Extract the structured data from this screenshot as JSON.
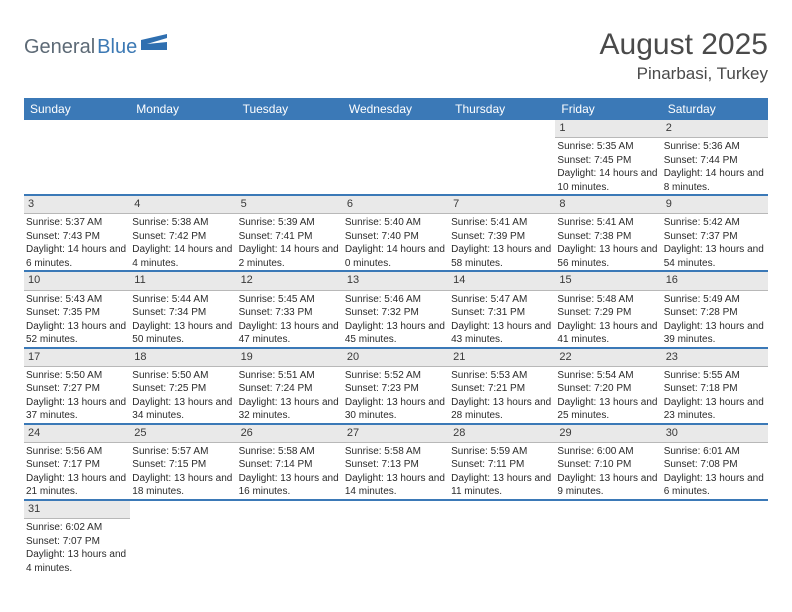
{
  "logo": {
    "part1": "General",
    "part2": "Blue",
    "shape_color": "#2f6fb0"
  },
  "header": {
    "title": "August 2025",
    "location": "Pinarbasi, Turkey"
  },
  "colors": {
    "header_bg": "#3b79b7",
    "header_text": "#ffffff",
    "daynum_bg": "#e9e9e9",
    "daynum_border": "#b8b8b8",
    "divider": "#3b79b7",
    "body_text": "#2b2b2b"
  },
  "dayNames": [
    "Sunday",
    "Monday",
    "Tuesday",
    "Wednesday",
    "Thursday",
    "Friday",
    "Saturday"
  ],
  "weeks": [
    [
      {
        "n": "",
        "sr": "",
        "ss": "",
        "dl": ""
      },
      {
        "n": "",
        "sr": "",
        "ss": "",
        "dl": ""
      },
      {
        "n": "",
        "sr": "",
        "ss": "",
        "dl": ""
      },
      {
        "n": "",
        "sr": "",
        "ss": "",
        "dl": ""
      },
      {
        "n": "",
        "sr": "",
        "ss": "",
        "dl": ""
      },
      {
        "n": "1",
        "sr": "Sunrise: 5:35 AM",
        "ss": "Sunset: 7:45 PM",
        "dl": "Daylight: 14 hours and 10 minutes."
      },
      {
        "n": "2",
        "sr": "Sunrise: 5:36 AM",
        "ss": "Sunset: 7:44 PM",
        "dl": "Daylight: 14 hours and 8 minutes."
      }
    ],
    [
      {
        "n": "3",
        "sr": "Sunrise: 5:37 AM",
        "ss": "Sunset: 7:43 PM",
        "dl": "Daylight: 14 hours and 6 minutes."
      },
      {
        "n": "4",
        "sr": "Sunrise: 5:38 AM",
        "ss": "Sunset: 7:42 PM",
        "dl": "Daylight: 14 hours and 4 minutes."
      },
      {
        "n": "5",
        "sr": "Sunrise: 5:39 AM",
        "ss": "Sunset: 7:41 PM",
        "dl": "Daylight: 14 hours and 2 minutes."
      },
      {
        "n": "6",
        "sr": "Sunrise: 5:40 AM",
        "ss": "Sunset: 7:40 PM",
        "dl": "Daylight: 14 hours and 0 minutes."
      },
      {
        "n": "7",
        "sr": "Sunrise: 5:41 AM",
        "ss": "Sunset: 7:39 PM",
        "dl": "Daylight: 13 hours and 58 minutes."
      },
      {
        "n": "8",
        "sr": "Sunrise: 5:41 AM",
        "ss": "Sunset: 7:38 PM",
        "dl": "Daylight: 13 hours and 56 minutes."
      },
      {
        "n": "9",
        "sr": "Sunrise: 5:42 AM",
        "ss": "Sunset: 7:37 PM",
        "dl": "Daylight: 13 hours and 54 minutes."
      }
    ],
    [
      {
        "n": "10",
        "sr": "Sunrise: 5:43 AM",
        "ss": "Sunset: 7:35 PM",
        "dl": "Daylight: 13 hours and 52 minutes."
      },
      {
        "n": "11",
        "sr": "Sunrise: 5:44 AM",
        "ss": "Sunset: 7:34 PM",
        "dl": "Daylight: 13 hours and 50 minutes."
      },
      {
        "n": "12",
        "sr": "Sunrise: 5:45 AM",
        "ss": "Sunset: 7:33 PM",
        "dl": "Daylight: 13 hours and 47 minutes."
      },
      {
        "n": "13",
        "sr": "Sunrise: 5:46 AM",
        "ss": "Sunset: 7:32 PM",
        "dl": "Daylight: 13 hours and 45 minutes."
      },
      {
        "n": "14",
        "sr": "Sunrise: 5:47 AM",
        "ss": "Sunset: 7:31 PM",
        "dl": "Daylight: 13 hours and 43 minutes."
      },
      {
        "n": "15",
        "sr": "Sunrise: 5:48 AM",
        "ss": "Sunset: 7:29 PM",
        "dl": "Daylight: 13 hours and 41 minutes."
      },
      {
        "n": "16",
        "sr": "Sunrise: 5:49 AM",
        "ss": "Sunset: 7:28 PM",
        "dl": "Daylight: 13 hours and 39 minutes."
      }
    ],
    [
      {
        "n": "17",
        "sr": "Sunrise: 5:50 AM",
        "ss": "Sunset: 7:27 PM",
        "dl": "Daylight: 13 hours and 37 minutes."
      },
      {
        "n": "18",
        "sr": "Sunrise: 5:50 AM",
        "ss": "Sunset: 7:25 PM",
        "dl": "Daylight: 13 hours and 34 minutes."
      },
      {
        "n": "19",
        "sr": "Sunrise: 5:51 AM",
        "ss": "Sunset: 7:24 PM",
        "dl": "Daylight: 13 hours and 32 minutes."
      },
      {
        "n": "20",
        "sr": "Sunrise: 5:52 AM",
        "ss": "Sunset: 7:23 PM",
        "dl": "Daylight: 13 hours and 30 minutes."
      },
      {
        "n": "21",
        "sr": "Sunrise: 5:53 AM",
        "ss": "Sunset: 7:21 PM",
        "dl": "Daylight: 13 hours and 28 minutes."
      },
      {
        "n": "22",
        "sr": "Sunrise: 5:54 AM",
        "ss": "Sunset: 7:20 PM",
        "dl": "Daylight: 13 hours and 25 minutes."
      },
      {
        "n": "23",
        "sr": "Sunrise: 5:55 AM",
        "ss": "Sunset: 7:18 PM",
        "dl": "Daylight: 13 hours and 23 minutes."
      }
    ],
    [
      {
        "n": "24",
        "sr": "Sunrise: 5:56 AM",
        "ss": "Sunset: 7:17 PM",
        "dl": "Daylight: 13 hours and 21 minutes."
      },
      {
        "n": "25",
        "sr": "Sunrise: 5:57 AM",
        "ss": "Sunset: 7:15 PM",
        "dl": "Daylight: 13 hours and 18 minutes."
      },
      {
        "n": "26",
        "sr": "Sunrise: 5:58 AM",
        "ss": "Sunset: 7:14 PM",
        "dl": "Daylight: 13 hours and 16 minutes."
      },
      {
        "n": "27",
        "sr": "Sunrise: 5:58 AM",
        "ss": "Sunset: 7:13 PM",
        "dl": "Daylight: 13 hours and 14 minutes."
      },
      {
        "n": "28",
        "sr": "Sunrise: 5:59 AM",
        "ss": "Sunset: 7:11 PM",
        "dl": "Daylight: 13 hours and 11 minutes."
      },
      {
        "n": "29",
        "sr": "Sunrise: 6:00 AM",
        "ss": "Sunset: 7:10 PM",
        "dl": "Daylight: 13 hours and 9 minutes."
      },
      {
        "n": "30",
        "sr": "Sunrise: 6:01 AM",
        "ss": "Sunset: 7:08 PM",
        "dl": "Daylight: 13 hours and 6 minutes."
      }
    ],
    [
      {
        "n": "31",
        "sr": "Sunrise: 6:02 AM",
        "ss": "Sunset: 7:07 PM",
        "dl": "Daylight: 13 hours and 4 minutes."
      },
      {
        "n": "",
        "sr": "",
        "ss": "",
        "dl": ""
      },
      {
        "n": "",
        "sr": "",
        "ss": "",
        "dl": ""
      },
      {
        "n": "",
        "sr": "",
        "ss": "",
        "dl": ""
      },
      {
        "n": "",
        "sr": "",
        "ss": "",
        "dl": ""
      },
      {
        "n": "",
        "sr": "",
        "ss": "",
        "dl": ""
      },
      {
        "n": "",
        "sr": "",
        "ss": "",
        "dl": ""
      }
    ]
  ]
}
